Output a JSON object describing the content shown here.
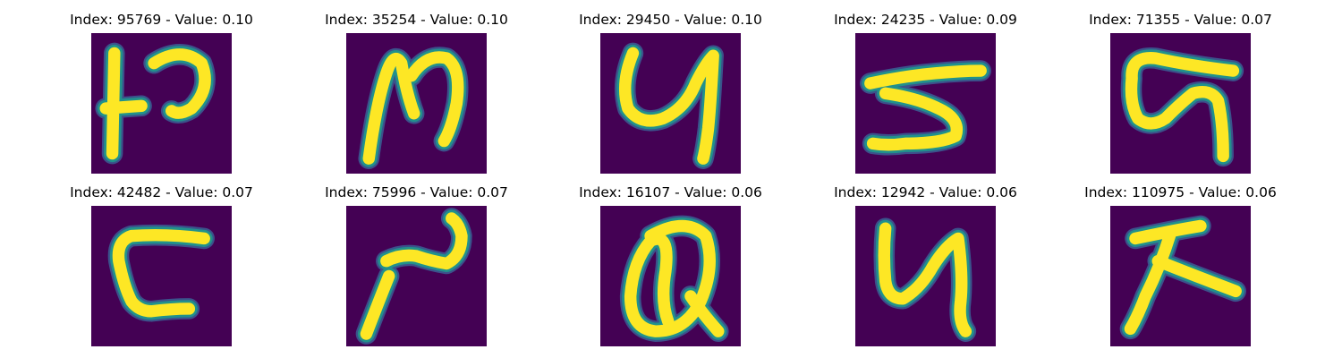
{
  "colors": {
    "background": "#440154",
    "stroke_mid": "#21918c",
    "stroke_edge": "#3b528b",
    "stroke_core": "#fde725"
  },
  "panels": [
    {
      "title": "Index: 95769 - Value: 0.10",
      "index": "95769",
      "value": "0.10",
      "glyph": "p1"
    },
    {
      "title": "Index: 35254 - Value: 0.10",
      "index": "35254",
      "value": "0.10",
      "glyph": "p2"
    },
    {
      "title": "Index: 29450 - Value: 0.10",
      "index": "29450",
      "value": "0.10",
      "glyph": "p3"
    },
    {
      "title": "Index: 24235 - Value: 0.09",
      "index": "24235",
      "value": "0.09",
      "glyph": "p4"
    },
    {
      "title": "Index: 71355 - Value: 0.07",
      "index": "71355",
      "value": "0.07",
      "glyph": "p5"
    },
    {
      "title": "Index: 42482 - Value: 0.07",
      "index": "42482",
      "value": "0.07",
      "glyph": "p6"
    },
    {
      "title": "Index: 75996 - Value: 0.07",
      "index": "75996",
      "value": "0.07",
      "glyph": "p7"
    },
    {
      "title": "Index: 16107 - Value: 0.06",
      "index": "16107",
      "value": "0.06",
      "glyph": "p8"
    },
    {
      "title": "Index: 12942 - Value: 0.06",
      "index": "12942",
      "value": "0.06",
      "glyph": "p9"
    },
    {
      "title": "Index: 110975 - Value: 0.06",
      "index": "110975",
      "value": "0.06",
      "glyph": "p10"
    }
  ]
}
